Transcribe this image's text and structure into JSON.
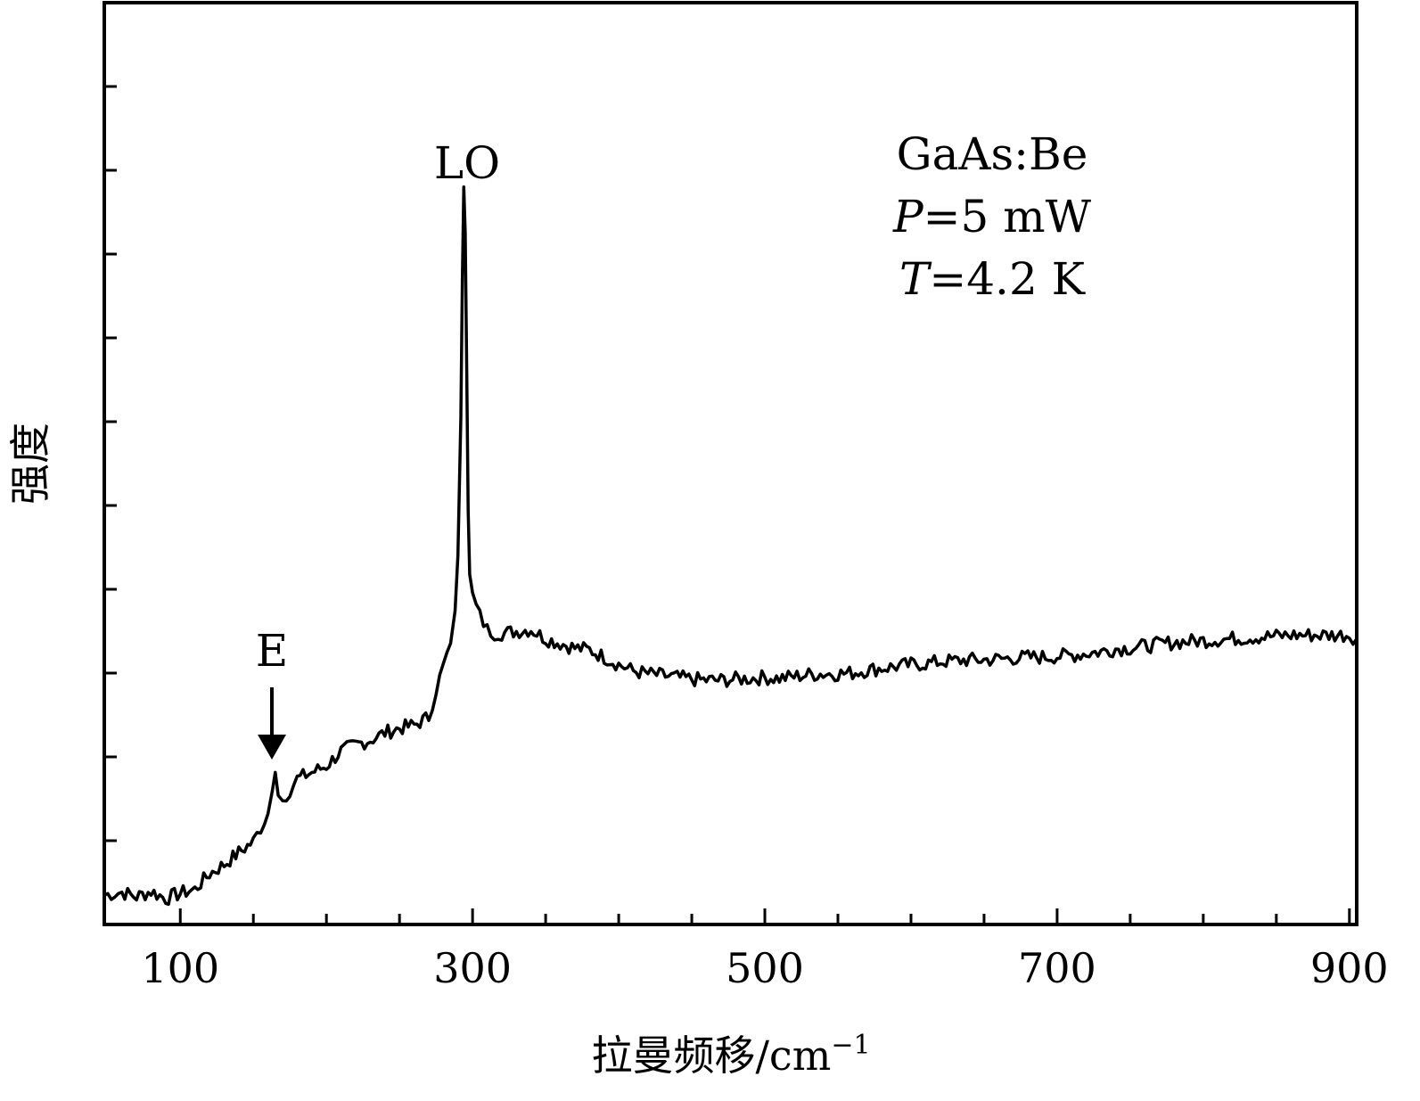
{
  "chart_data": {
    "type": "line",
    "title": "",
    "xlabel": "拉曼频移/cm",
    "xlabel_sup": "−1",
    "ylabel": "强度",
    "xlim": [
      48,
      905
    ],
    "ylim": [
      0,
      100
    ],
    "x_ticks_major": [
      100,
      300,
      500,
      700,
      900
    ],
    "x_ticks_minor": [
      150,
      200,
      250,
      350,
      400,
      450,
      550,
      600,
      650,
      750,
      800,
      850
    ],
    "x_tick_labels": [
      "100",
      "300",
      "500",
      "700",
      "900"
    ],
    "y_tick_count": 10,
    "grid": false,
    "legend": "none",
    "series": [
      {
        "color": "#000000",
        "x": [
          48,
          60,
          70,
          80,
          90,
          100,
          110,
          120,
          130,
          140,
          150,
          155,
          160,
          163,
          165,
          167,
          170,
          175,
          180,
          190,
          200,
          210,
          220,
          230,
          240,
          250,
          260,
          270,
          275,
          280,
          285,
          288,
          290,
          292,
          293,
          294,
          295,
          296,
          297,
          298,
          300,
          305,
          310,
          315,
          320,
          330,
          340,
          350,
          360,
          370,
          380,
          390,
          400,
          410,
          420,
          430,
          440,
          450,
          460,
          470,
          480,
          490,
          500,
          510,
          520,
          530,
          540,
          550,
          560,
          570,
          580,
          590,
          600,
          610,
          620,
          630,
          640,
          650,
          660,
          670,
          680,
          690,
          700,
          710,
          720,
          730,
          740,
          750,
          760,
          770,
          780,
          790,
          800,
          810,
          820,
          830,
          840,
          850,
          860,
          870,
          880,
          890,
          900,
          905
        ],
        "y": [
          3.2,
          3.5,
          3.0,
          3.6,
          2.8,
          3.4,
          3.8,
          5.5,
          6.5,
          7.8,
          9.0,
          10.5,
          12.0,
          14.5,
          16.5,
          14.0,
          13.5,
          14.6,
          15.8,
          16.5,
          17.2,
          18.8,
          19.5,
          20.0,
          20.8,
          21.3,
          21.6,
          22.5,
          25.5,
          28.0,
          30.5,
          34.0,
          40.0,
          55.0,
          70.0,
          80.0,
          75.0,
          60.0,
          45.0,
          38.0,
          36.0,
          33.5,
          32.0,
          31.6,
          31.6,
          31.8,
          32.0,
          31.0,
          30.5,
          30.0,
          29.8,
          29.0,
          28.2,
          27.5,
          27.2,
          27.0,
          26.8,
          26.6,
          26.5,
          26.5,
          26.6,
          26.7,
          26.8,
          26.7,
          26.9,
          27.1,
          27.2,
          27.2,
          27.3,
          27.6,
          27.8,
          28.0,
          28.2,
          28.3,
          28.5,
          28.6,
          28.7,
          28.7,
          28.8,
          28.9,
          29.0,
          29.0,
          29.1,
          29.2,
          29.4,
          29.6,
          29.9,
          30.0,
          30.2,
          30.4,
          30.6,
          30.7,
          30.8,
          30.9,
          31.0,
          31.1,
          31.2,
          31.3,
          31.4,
          31.4,
          31.4,
          31.4,
          31.4,
          31.0
        ]
      }
    ],
    "annotations": {
      "lo_label": "LO",
      "e_label": "E",
      "e_arrow_x": 163,
      "info_line1": "GaAs:Be",
      "info_line2_var": "P",
      "info_line2_rest": "=5 mW",
      "info_line3_var": "T",
      "info_line3_rest": "=4.2 K"
    }
  }
}
